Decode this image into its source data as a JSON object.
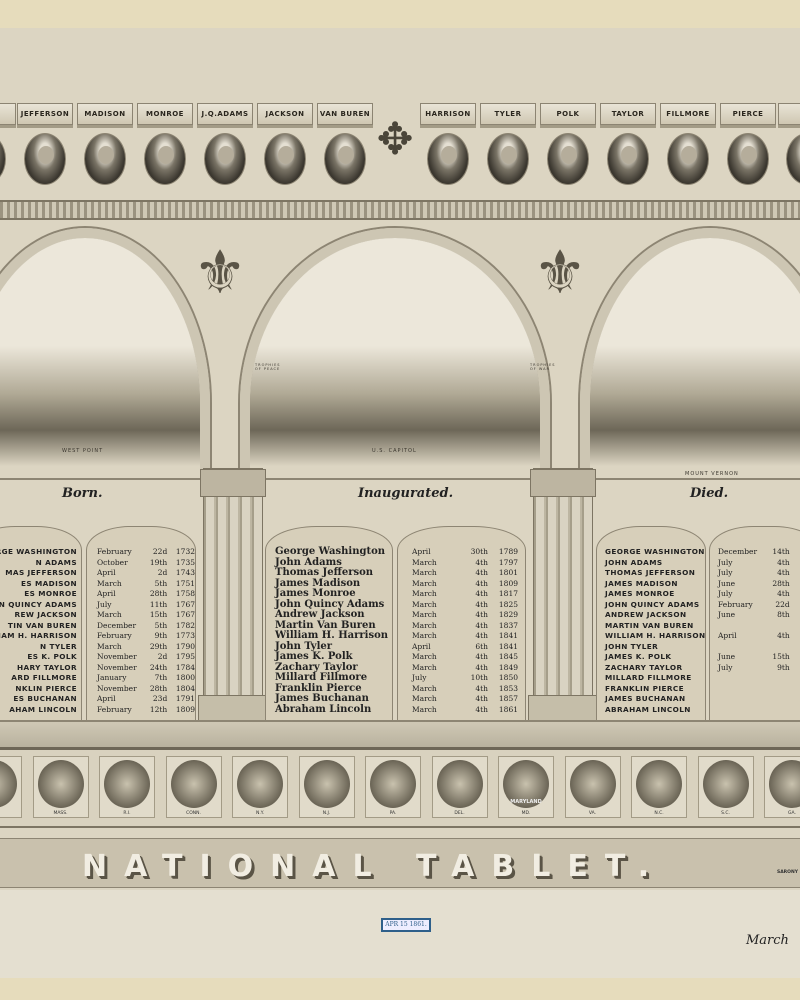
{
  "top_plaques": [
    "JEFFERSON",
    "MADISON",
    "MONROE",
    "J.Q.ADAMS",
    "JACKSON",
    "VAN BUREN",
    "HARRISON",
    "TYLER",
    "POLK",
    "TAYLOR",
    "FILLMORE",
    "PIERCE"
  ],
  "vignettes": {
    "left": "WEST POINT",
    "center": "U.S. CAPITOL",
    "right": "MOUNT VERNON"
  },
  "trophies": {
    "left": "TROPHIES OF PEACE",
    "right": "TROPHIES OF WAR"
  },
  "born": {
    "heading": "Born.",
    "names": [
      "RGE WASHINGTON",
      "N ADAMS",
      "MAS JEFFERSON",
      "ES MADISON",
      "ES MONROE",
      "N QUINCY ADAMS",
      "REW JACKSON",
      "TIN VAN BUREN",
      "IAM H. HARRISON",
      "N TYLER",
      "ES K. POLK",
      "HARY TAYLOR",
      "ARD FILLMORE",
      "NKLIN PIERCE",
      "ES BUCHANAN",
      "AHAM LINCOLN"
    ],
    "dates": [
      [
        "February",
        "22d",
        "1732"
      ],
      [
        "October",
        "19th",
        "1735"
      ],
      [
        "April",
        "2d",
        "1743"
      ],
      [
        "March",
        "5th",
        "1751"
      ],
      [
        "April",
        "28th",
        "1758"
      ],
      [
        "July",
        "11th",
        "1767"
      ],
      [
        "March",
        "15th",
        "1767"
      ],
      [
        "December",
        "5th",
        "1782"
      ],
      [
        "February",
        "9th",
        "1773"
      ],
      [
        "March",
        "29th",
        "1790"
      ],
      [
        "November",
        "2d",
        "1795"
      ],
      [
        "November",
        "24th",
        "1784"
      ],
      [
        "January",
        "7th",
        "1800"
      ],
      [
        "November",
        "28th",
        "1804"
      ],
      [
        "April",
        "23d",
        "1791"
      ],
      [
        "February",
        "12th",
        "1809"
      ]
    ]
  },
  "inaugurated": {
    "heading": "Inaugurated.",
    "names": [
      "George Washington",
      "John Adams",
      "Thomas Jefferson",
      "James Madison",
      "James Monroe",
      "John Quincy Adams",
      "Andrew Jackson",
      "Martin Van Buren",
      "William H. Harrison",
      "John Tyler",
      "James K. Polk",
      "Zachary Taylor",
      "Millard Fillmore",
      "Franklin Pierce",
      "James Buchanan",
      "Abraham Lincoln"
    ],
    "dates": [
      [
        "April",
        "30th",
        "1789"
      ],
      [
        "March",
        "4th",
        "1797"
      ],
      [
        "March",
        "4th",
        "1801"
      ],
      [
        "March",
        "4th",
        "1809"
      ],
      [
        "March",
        "4th",
        "1817"
      ],
      [
        "March",
        "4th",
        "1825"
      ],
      [
        "March",
        "4th",
        "1829"
      ],
      [
        "March",
        "4th",
        "1837"
      ],
      [
        "March",
        "4th",
        "1841"
      ],
      [
        "April",
        "6th",
        "1841"
      ],
      [
        "March",
        "4th",
        "1845"
      ],
      [
        "March",
        "4th",
        "1849"
      ],
      [
        "July",
        "10th",
        "1850"
      ],
      [
        "March",
        "4th",
        "1853"
      ],
      [
        "March",
        "4th",
        "1857"
      ],
      [
        "March",
        "4th",
        "1861"
      ]
    ]
  },
  "died": {
    "heading": "Died.",
    "names": [
      "GEORGE WASHINGTON",
      "JOHN ADAMS",
      "THOMAS JEFFERSON",
      "JAMES MADISON",
      "JAMES MONROE",
      "JOHN QUINCY ADAMS",
      "ANDREW JACKSON",
      "MARTIN VAN BUREN",
      "WILLIAM H. HARRISON",
      "JOHN TYLER",
      "JAMES K. POLK",
      "ZACHARY TAYLOR",
      "MILLARD FILLMORE",
      "FRANKLIN PIERCE",
      "JAMES BUCHANAN",
      "ABRAHAM LINCOLN"
    ],
    "dates": [
      [
        "December",
        "14th",
        "179"
      ],
      [
        "July",
        "4th",
        "182"
      ],
      [
        "July",
        "4th",
        "182"
      ],
      [
        "June",
        "28th",
        "183"
      ],
      [
        "July",
        "4th",
        "183"
      ],
      [
        "February",
        "22d",
        "184"
      ],
      [
        "June",
        "8th",
        "184"
      ],
      [
        "",
        "",
        ""
      ],
      [
        "April",
        "4th",
        "184"
      ],
      [
        "",
        "",
        ""
      ],
      [
        "June",
        "15th",
        "184"
      ],
      [
        "July",
        "9th",
        "185"
      ],
      [
        "",
        "",
        ""
      ],
      [
        "",
        "",
        ""
      ],
      [
        "",
        "",
        ""
      ],
      [
        "",
        "",
        ""
      ]
    ]
  },
  "seals": [
    "",
    "MASS.",
    "R.I.",
    "CONN.",
    "N.Y.",
    "N.J.",
    "PA.",
    "DEL.",
    "MD.",
    "VA.",
    "N.C.",
    "S.C.",
    "GA."
  ],
  "seal_text": {
    "md": "MARYLAND"
  },
  "title": "NATIONAL TABLET.",
  "publisher": "SARONY",
  "stamp": "APR 15 1861.",
  "handwriting": "March",
  "colors": {
    "paper": "#e4dfd0",
    "print": "#dcd5c2",
    "border": "#e6dcbc",
    "stamp": "#2e5f8a"
  }
}
